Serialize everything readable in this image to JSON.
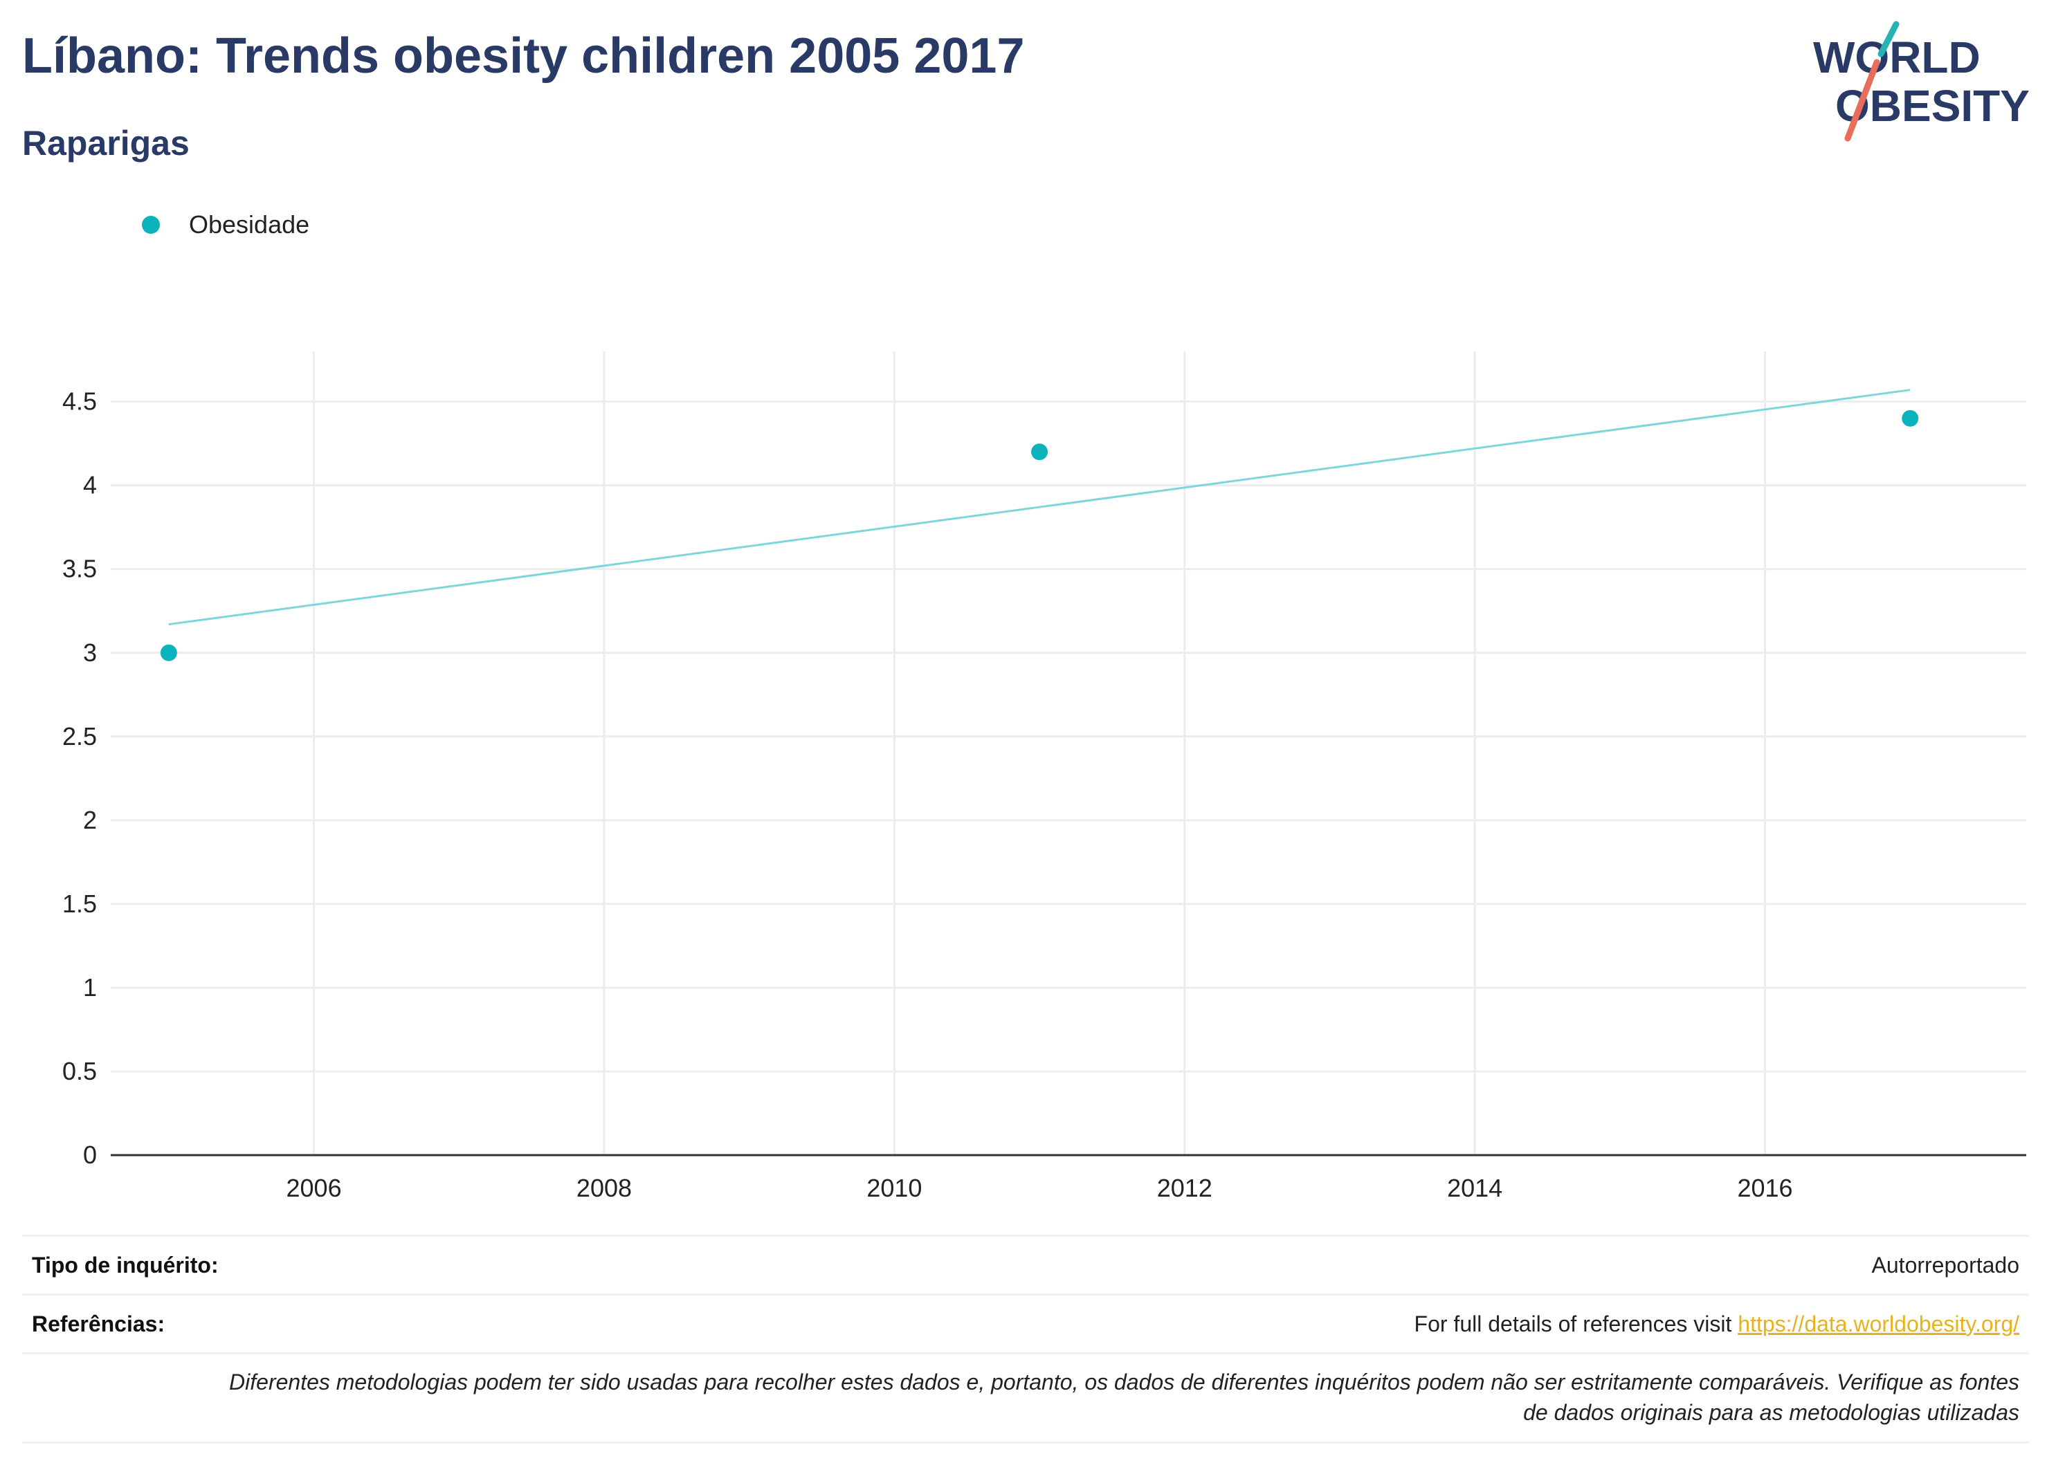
{
  "header": {
    "title": "Líbano: Trends obesity children 2005 2017",
    "subtitle": "Raparigas"
  },
  "logo": {
    "line1": "WORLD",
    "line2": "OBESITY"
  },
  "legend": {
    "label": "Obesidade"
  },
  "colors": {
    "point": "#0bb4bd",
    "trend": "#7dd6da",
    "title": "#2a3a66",
    "link": "#e8b21e",
    "logo_teal": "#25b3b4",
    "logo_red": "#e86d5b"
  },
  "chart_data": {
    "type": "scatter",
    "title": "Líbano: Trends obesity children 2005 2017",
    "subtitle": "Raparigas",
    "xlabel": "",
    "ylabel": "",
    "xlim": [
      2004.6,
      2017.8
    ],
    "ylim": [
      0,
      4.8
    ],
    "x_ticks": [
      2006,
      2008,
      2010,
      2012,
      2014,
      2016
    ],
    "y_ticks": [
      0,
      0.5,
      1,
      1.5,
      2,
      2.5,
      3,
      3.5,
      4,
      4.5
    ],
    "y_tick_labels": [
      "0",
      "0.5",
      "1",
      "1.5",
      "2",
      "2.5",
      "3",
      "3.5",
      "4",
      "4.5"
    ],
    "grid": true,
    "legend_position": "top-left",
    "series": [
      {
        "name": "Obesidade",
        "x": [
          2005,
          2011,
          2017
        ],
        "y": [
          3.0,
          4.2,
          4.4
        ]
      }
    ],
    "trendline": {
      "x": [
        2005,
        2017
      ],
      "y": [
        3.17,
        4.57
      ]
    }
  },
  "footer": {
    "survey_label": "Tipo de inquérito:",
    "survey_value": "Autorreportado",
    "refs_label": "Referências:",
    "refs_text": "For full details of references visit ",
    "refs_link": "https://data.worldobesity.org/",
    "note_line1": "Diferentes metodologias podem ter sido usadas para recolher estes dados e, portanto, os dados de diferentes inquéritos podem não ser estritamente comparáveis. Verifique as fontes",
    "note_line2": "de dados originais para as metodologias utilizadas"
  }
}
